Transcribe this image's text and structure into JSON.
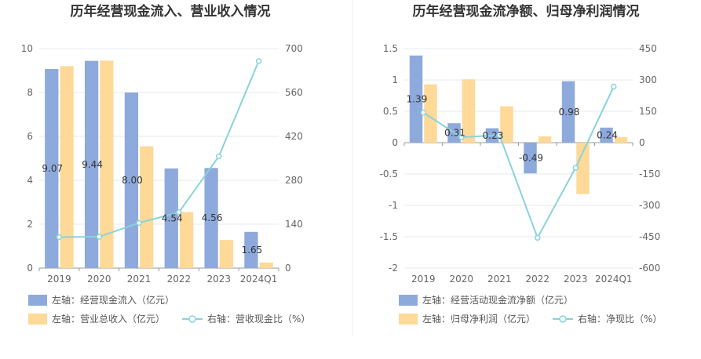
{
  "chart_data": [
    {
      "type": "bar",
      "title": "历年经营现金流入、营业收入情况",
      "categories": [
        "2019",
        "2020",
        "2021",
        "2022",
        "2023",
        "2024Q1"
      ],
      "left_axis": {
        "min": 0,
        "max": 10,
        "step": 2,
        "ticks": [
          "0",
          "2",
          "4",
          "6",
          "8",
          "10"
        ]
      },
      "right_axis": {
        "min": 0,
        "max": 700,
        "step": 140,
        "ticks": [
          "0",
          "140",
          "280",
          "420",
          "560",
          "700"
        ]
      },
      "grid": true,
      "legend_position": "bottom-left",
      "series": [
        {
          "name": "左轴：经营现金流入（亿元）",
          "kind": "bar",
          "axis": "left",
          "color": "#8eaadc",
          "values": [
            9.07,
            9.44,
            8.0,
            4.54,
            4.56,
            1.65
          ],
          "labels": [
            "9.07",
            "9.44",
            "8.00",
            "4.54",
            "4.56",
            "1.65"
          ]
        },
        {
          "name": "左轴：营业总收入（亿元）",
          "kind": "bar",
          "axis": "left",
          "color": "#ffd998",
          "values": [
            9.2,
            9.45,
            5.55,
            2.55,
            1.28,
            0.25
          ]
        },
        {
          "name": "右轴：营收现金比（%）",
          "kind": "line",
          "axis": "right",
          "color": "#8ad3d9",
          "values": [
            98.6,
            99.9,
            144.1,
            178.0,
            356.3,
            660.0
          ]
        }
      ]
    },
    {
      "type": "bar",
      "title": "历年经营现金流净额、归母净利润情况",
      "categories": [
        "2019",
        "2020",
        "2021",
        "2022",
        "2023",
        "2024Q1"
      ],
      "left_axis": {
        "min": -2,
        "max": 1.5,
        "step": 0.5,
        "ticks": [
          "-2",
          "-1.5",
          "-1",
          "-0.5",
          "0",
          "0.5",
          "1",
          "1.5"
        ]
      },
      "right_axis": {
        "min": -600,
        "max": 450,
        "step": 150,
        "ticks": [
          "-600",
          "-450",
          "-300",
          "-150",
          "0",
          "150",
          "300",
          "450"
        ]
      },
      "grid": true,
      "legend_position": "bottom-left",
      "series": [
        {
          "name": "左轴：经营活动现金流净额（亿元）",
          "kind": "bar",
          "axis": "left",
          "color": "#8eaadc",
          "values": [
            1.39,
            0.31,
            0.23,
            -0.49,
            0.98,
            0.24
          ],
          "labels": [
            "1.39",
            "0.31",
            "0.23",
            "-0.49",
            "0.98",
            "0.24"
          ]
        },
        {
          "name": "左轴：归母净利润（亿元）",
          "kind": "bar",
          "axis": "left",
          "color": "#ffd998",
          "values": [
            0.93,
            1.01,
            0.58,
            0.1,
            -0.82,
            0.09
          ]
        },
        {
          "name": "右轴：净现比（%）",
          "kind": "line",
          "axis": "right",
          "color": "#8ad3d9",
          "values": [
            144,
            26,
            36,
            -455,
            -120,
            268
          ]
        }
      ]
    }
  ]
}
